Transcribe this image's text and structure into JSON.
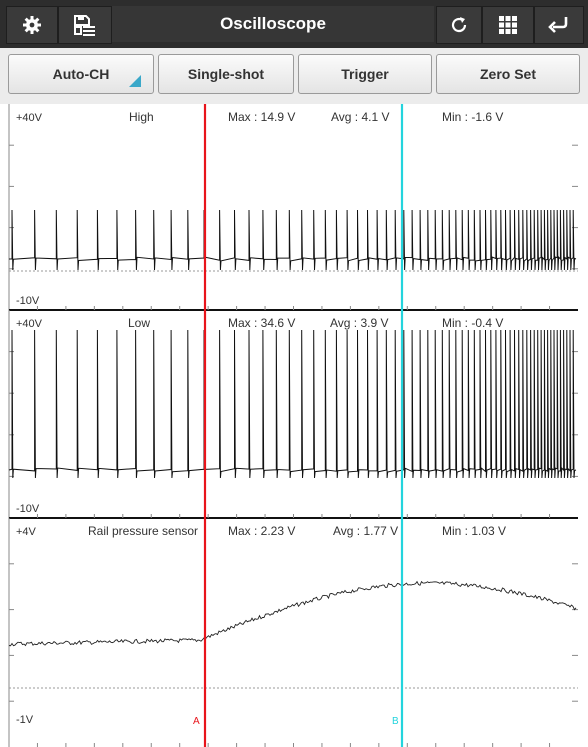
{
  "app": {
    "title": "Oscilloscope"
  },
  "toolbar": {
    "icons": [
      "gear-icon",
      "save-list-icon",
      "refresh-icon",
      "grid-icon",
      "back-icon"
    ]
  },
  "buttons": {
    "auto_ch": "Auto-CH",
    "single_shot": "Single-shot",
    "trigger": "Trigger",
    "zero_set": "Zero Set"
  },
  "channels": [
    {
      "name": "High",
      "max": "Max : 14.9 V",
      "avg": "Avg : 4.1 V",
      "min": "Min : -1.6 V",
      "top_scale": "+40V",
      "bottom_scale": "-10V"
    },
    {
      "name": "Low",
      "max": "Max : 34.6 V",
      "avg": "Avg : 3.9 V",
      "min": "Min : -0.4 V",
      "top_scale": "+40V",
      "bottom_scale": "-10V"
    },
    {
      "name": "Rail pressure sensor",
      "max": "Max : 2.23 V",
      "avg": "Avg : 1.77 V",
      "min": "Min : 1.03 V",
      "top_scale": "+4V",
      "bottom_scale": "-1V"
    }
  ],
  "cursors": {
    "a": {
      "label": "A",
      "color": "#e8141b"
    },
    "b": {
      "label": "B",
      "color": "#23d4dd"
    }
  },
  "colors": {
    "trace": "#111111",
    "topbar": "#2d2d2d",
    "accent": "#3aa8c9"
  }
}
